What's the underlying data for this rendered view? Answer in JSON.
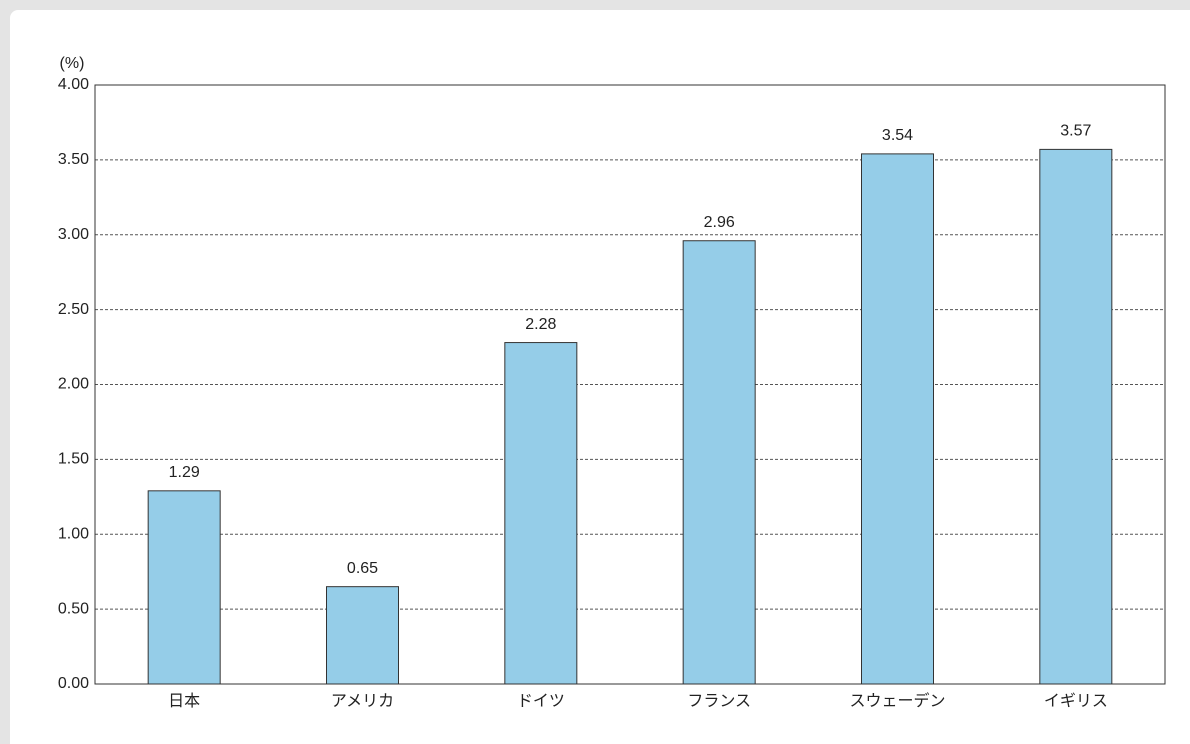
{
  "chart_data": {
    "type": "bar",
    "y_label": "(%)",
    "categories": [
      "日本",
      "アメリカ",
      "ドイツ",
      "フランス",
      "スウェーデン",
      "イギリス"
    ],
    "values": [
      1.29,
      0.65,
      2.28,
      2.96,
      3.54,
      3.57
    ],
    "color": "#95cde8",
    "ylim": [
      0,
      4
    ],
    "yticks": [
      {
        "value": 0,
        "label": "0.00"
      },
      {
        "value": 0.5,
        "label": "0.50"
      },
      {
        "value": 1,
        "label": "1.00"
      },
      {
        "value": 1.5,
        "label": "1.50"
      },
      {
        "value": 2,
        "label": "2.00"
      },
      {
        "value": 2.5,
        "label": "2.50"
      },
      {
        "value": 3,
        "label": "3.00"
      },
      {
        "value": 3.5,
        "label": "3.50"
      },
      {
        "value": 4,
        "label": "4.00"
      }
    ],
    "grid": true
  }
}
